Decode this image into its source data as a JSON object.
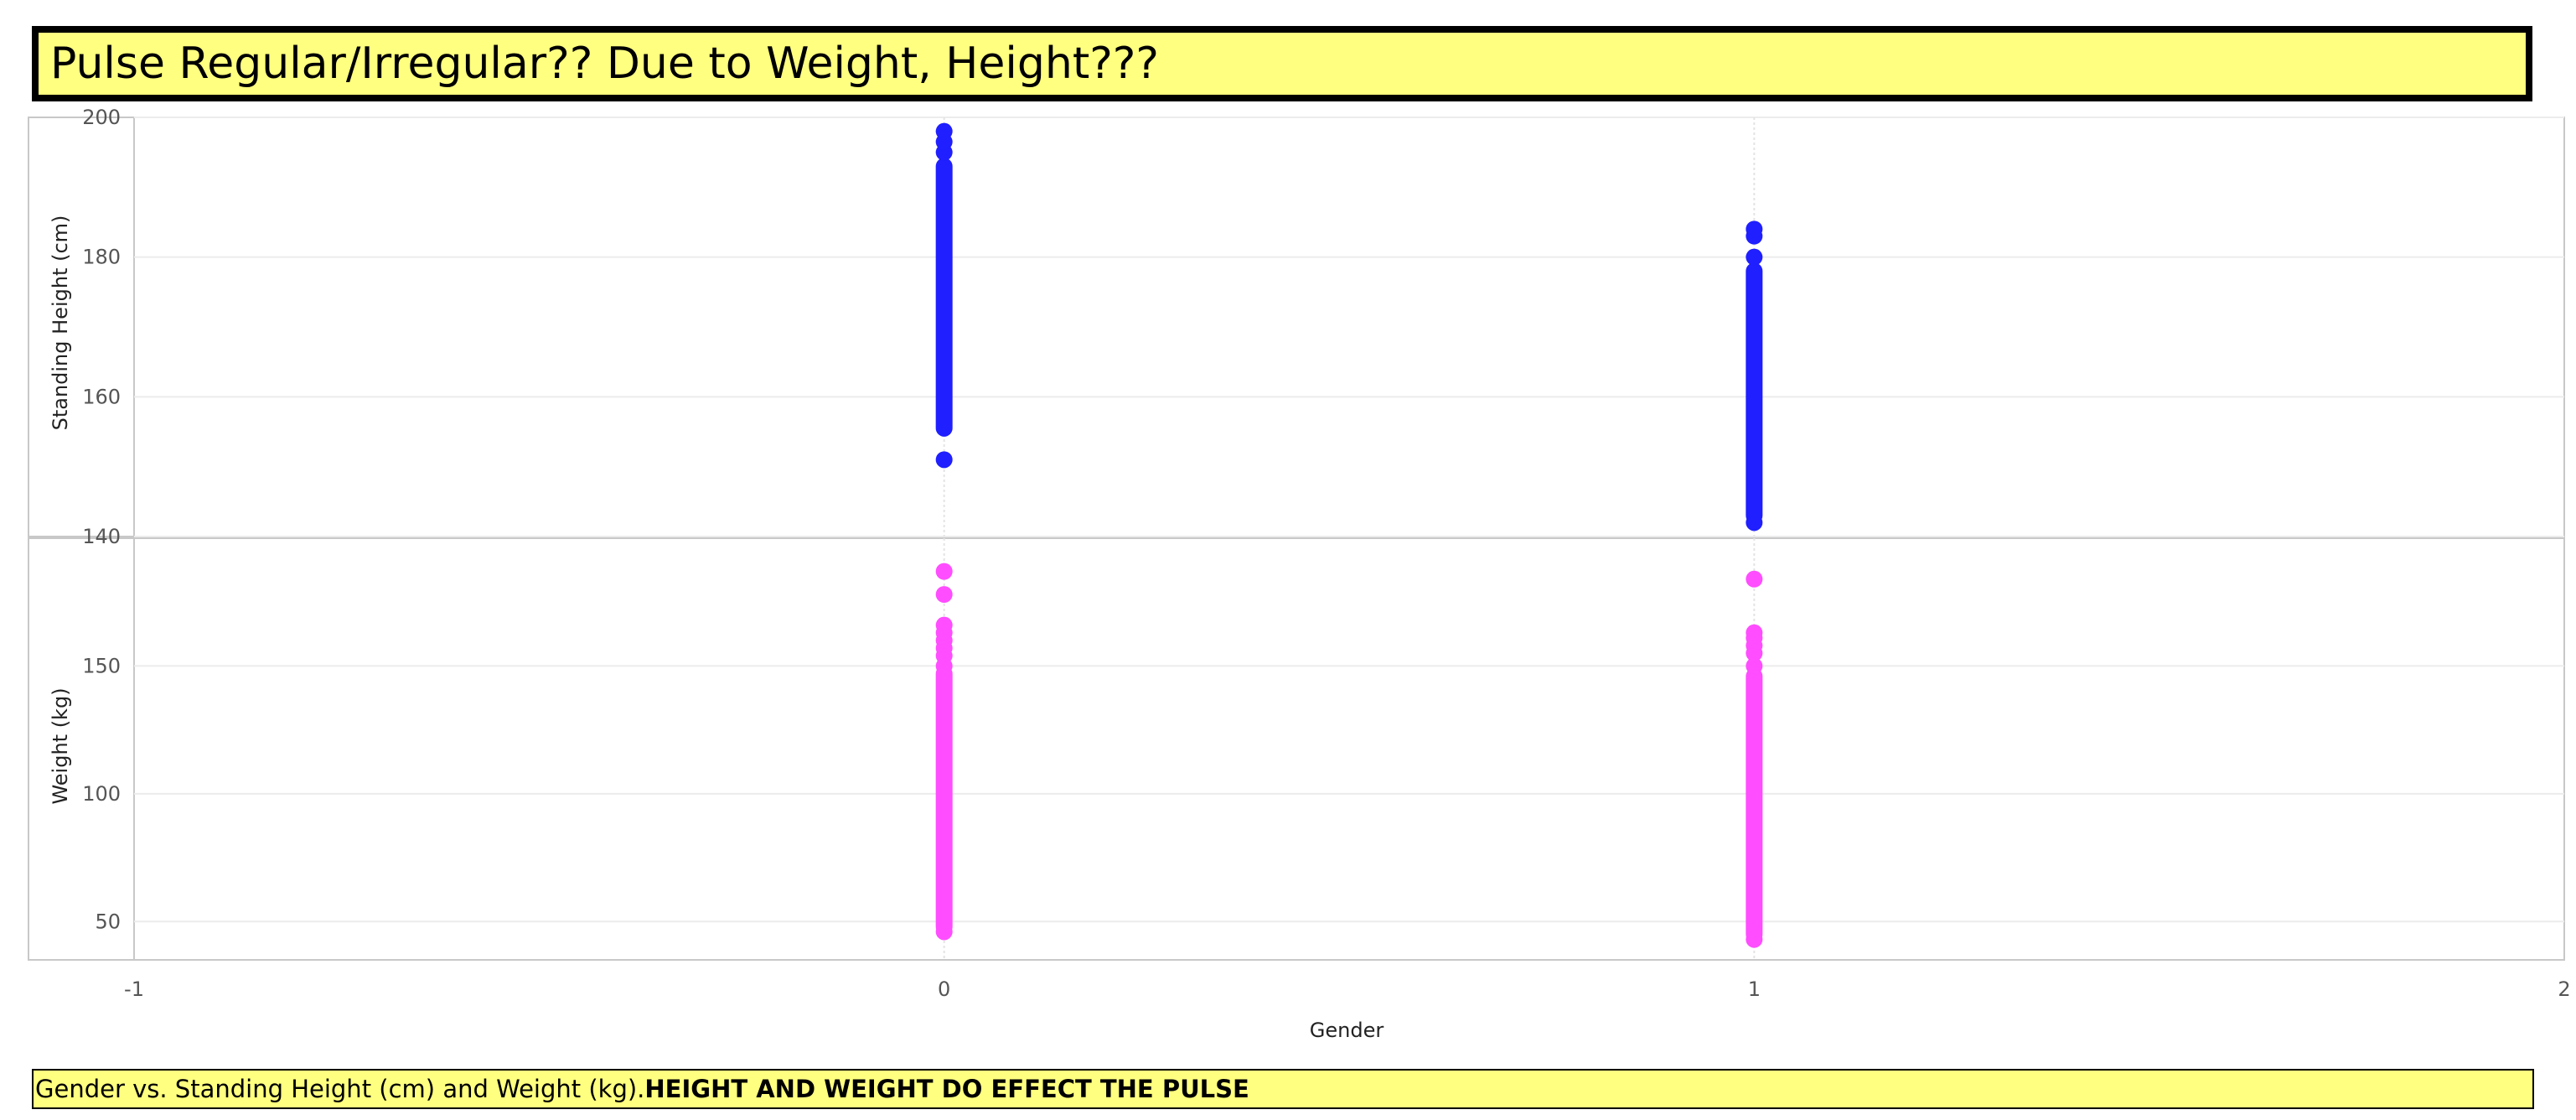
{
  "title": "Pulse Regular/Irregular?? Due to Weight, Height???",
  "caption": {
    "text": "Gender vs. Standing Height (cm) and Weight (kg).",
    "emphasis": "HEIGHT AND WEIGHT DO EFFECT THE PULSE"
  },
  "chart_data": {
    "type": "scatter",
    "xlabel": "Gender",
    "xlim": [
      -1,
      2
    ],
    "xticks": [
      "-1",
      "0",
      "1",
      "2"
    ],
    "grid": true,
    "panels": [
      {
        "ylabel": "Standing Height (cm)",
        "ylim": [
          140,
          200
        ],
        "yticks": [
          "140",
          "160",
          "180",
          "200"
        ],
        "color": "#1f1fff",
        "series": [
          {
            "x": 0,
            "range": [
              155.5,
              193
            ],
            "outliers": [
              151,
              195,
              196.5,
              198
            ]
          },
          {
            "x": 1,
            "range": [
              143,
              178
            ],
            "outliers": [
              142,
              180,
              183,
              184
            ]
          }
        ]
      },
      {
        "ylabel": "Weight (kg)",
        "ylim": [
          35,
          200
        ],
        "yticks": [
          "50",
          "100",
          "150"
        ],
        "color": "#ff4dff",
        "series": [
          {
            "x": 0,
            "range": [
              48,
              147
            ],
            "outliers": [
              46,
              150,
              154,
              157,
              160,
              163,
              166,
              178,
              187
            ]
          },
          {
            "x": 1,
            "range": [
              45,
              146
            ],
            "outliers": [
              43,
              150,
              155,
              158,
              161,
              163,
              184
            ]
          }
        ]
      }
    ]
  }
}
